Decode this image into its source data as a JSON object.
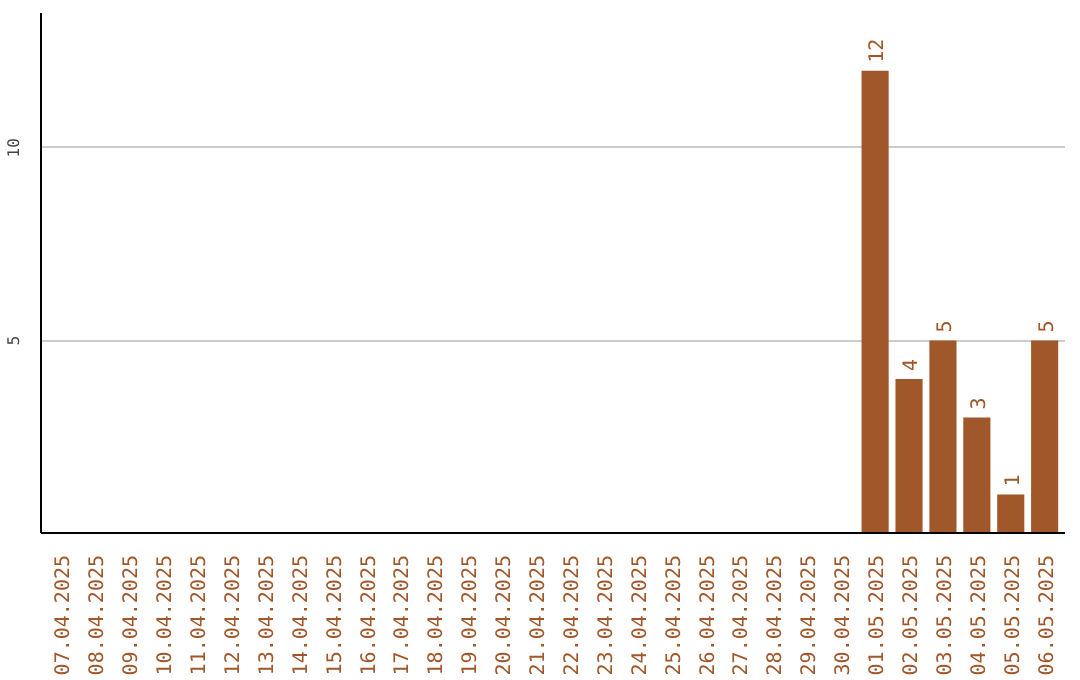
{
  "chart_data": {
    "type": "bar",
    "categories": [
      "07.04.2025",
      "08.04.2025",
      "09.04.2025",
      "10.04.2025",
      "11.04.2025",
      "12.04.2025",
      "13.04.2025",
      "14.04.2025",
      "15.04.2025",
      "16.04.2025",
      "17.04.2025",
      "18.04.2025",
      "19.04.2025",
      "20.04.2025",
      "21.04.2025",
      "22.04.2025",
      "23.04.2025",
      "24.04.2025",
      "25.04.2025",
      "26.04.2025",
      "27.04.2025",
      "28.04.2025",
      "29.04.2025",
      "30.04.2025",
      "01.05.2025",
      "02.05.2025",
      "03.05.2025",
      "04.05.2025",
      "05.05.2025",
      "06.05.2025"
    ],
    "values": [
      0,
      0,
      0,
      0,
      0,
      0,
      0,
      0,
      0,
      0,
      0,
      0,
      0,
      0,
      0,
      0,
      0,
      0,
      0,
      0,
      0,
      0,
      0,
      0,
      12,
      4,
      5,
      3,
      1,
      5
    ],
    "value_labels": [
      null,
      null,
      null,
      null,
      null,
      null,
      null,
      null,
      null,
      null,
      null,
      null,
      null,
      null,
      null,
      null,
      null,
      null,
      null,
      null,
      null,
      null,
      null,
      null,
      "12",
      "4",
      "5",
      "3",
      "1",
      "5"
    ],
    "color": "#a0572a",
    "ylim": [
      0,
      13.5
    ],
    "yticks": [
      5,
      10
    ],
    "grid": "y"
  }
}
